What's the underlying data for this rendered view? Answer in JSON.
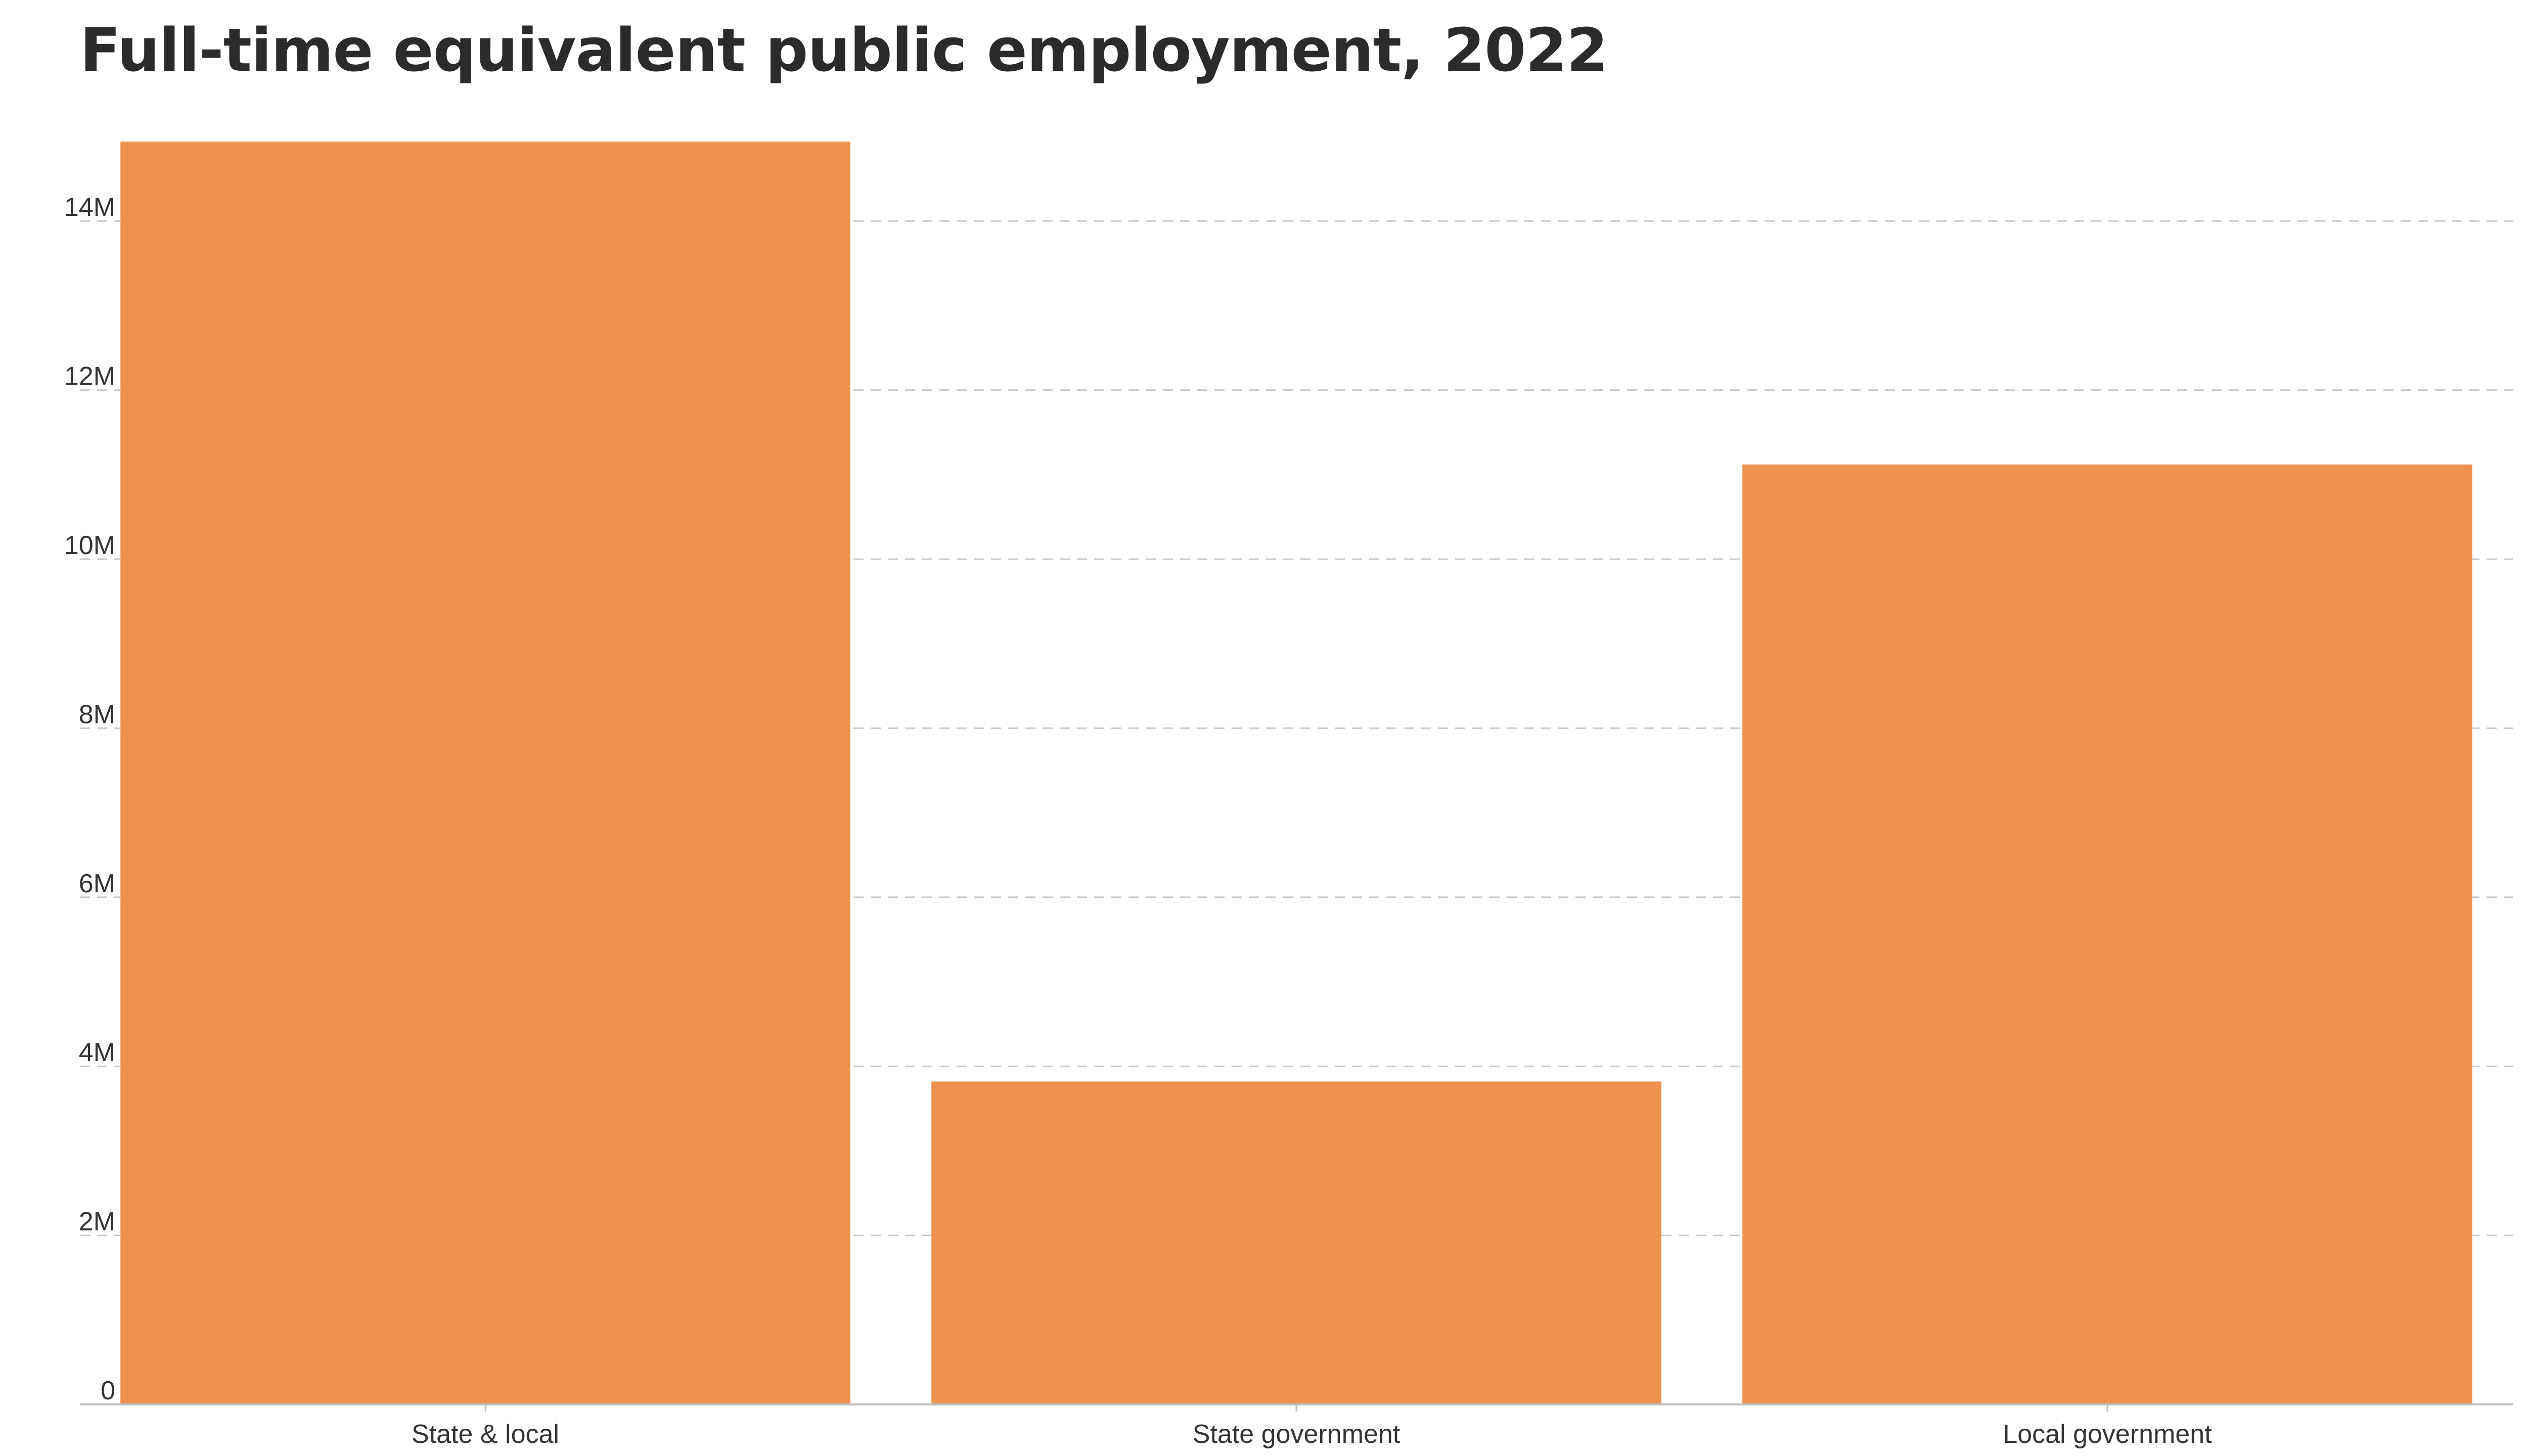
{
  "chart_data": {
    "type": "bar",
    "title": "Full-time equivalent public employment, 2022",
    "xlabel": "",
    "ylabel": "",
    "categories": [
      "State & local",
      "State government",
      "Local government"
    ],
    "values": [
      14940000,
      3820000,
      11120000
    ],
    "ylim": [
      0,
      15000000
    ],
    "yticks": [
      0,
      2000000,
      4000000,
      6000000,
      8000000,
      10000000,
      12000000,
      14000000
    ],
    "ytick_labels": [
      "0",
      "2M",
      "4M",
      "6M",
      "8M",
      "10M",
      "12M",
      "14M"
    ],
    "grid": true,
    "legend": "none",
    "bar_color": "#EF914F",
    "grid_color": "#C9C9C9",
    "axis_color": "#BDBDBD",
    "text_color": "#333333"
  }
}
